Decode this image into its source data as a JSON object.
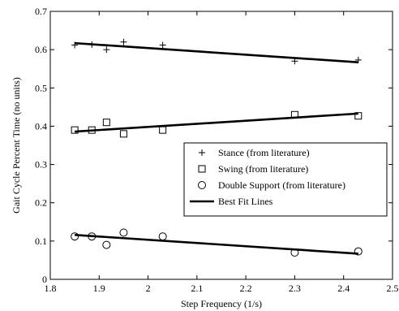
{
  "chart_data": {
    "type": "scatter",
    "title": "",
    "xlabel": "Step Frequency (1/s)",
    "ylabel": "Gait Cycle Percent Time (no units)",
    "xlim": [
      1.8,
      2.5
    ],
    "ylim": [
      0,
      0.7
    ],
    "x_ticks": [
      "1.8",
      "1.9",
      "2",
      "2.1",
      "2.2",
      "2.3",
      "2.4",
      "2.5"
    ],
    "y_ticks": [
      "0",
      "0.1",
      "0.2",
      "0.3",
      "0.4",
      "0.5",
      "0.6",
      "0.7"
    ],
    "grid": false,
    "legend_position": "right",
    "series": [
      {
        "name": "Stance (from literature)",
        "marker": "plus",
        "x": [
          1.85,
          1.885,
          1.915,
          1.95,
          2.03,
          2.3,
          2.43
        ],
        "y": [
          0.612,
          0.613,
          0.6,
          0.62,
          0.612,
          0.57,
          0.573
        ]
      },
      {
        "name": "Swing (from literature)",
        "marker": "square",
        "x": [
          1.85,
          1.885,
          1.915,
          1.95,
          2.03,
          2.3,
          2.43
        ],
        "y": [
          0.39,
          0.39,
          0.41,
          0.38,
          0.39,
          0.43,
          0.427
        ]
      },
      {
        "name": "Double Support (from literature)",
        "marker": "circle",
        "x": [
          1.85,
          1.885,
          1.915,
          1.95,
          2.03,
          2.3,
          2.43
        ],
        "y": [
          0.112,
          0.112,
          0.09,
          0.122,
          0.112,
          0.07,
          0.073
        ]
      }
    ],
    "fit_lines": {
      "name": "Best Fit Lines",
      "lines": [
        {
          "x": [
            1.85,
            2.43
          ],
          "y": [
            0.617,
            0.567
          ]
        },
        {
          "x": [
            1.85,
            2.43
          ],
          "y": [
            0.386,
            0.433
          ]
        },
        {
          "x": [
            1.85,
            2.43
          ],
          "y": [
            0.116,
            0.067
          ]
        }
      ]
    },
    "colors": {
      "marks": "#000000",
      "background": "#ffffff"
    }
  }
}
